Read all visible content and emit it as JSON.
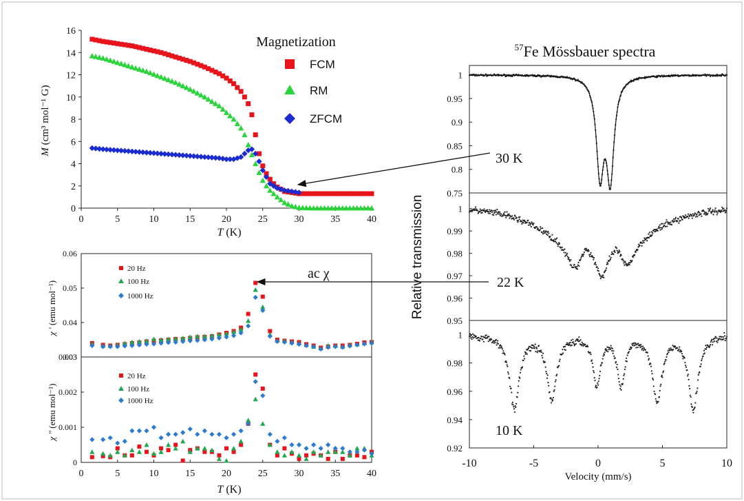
{
  "chart_data": [
    {
      "type": "scatter",
      "title": "Magnetization",
      "xlabel_prefix": "T",
      "xlabel_suffix": " (K)",
      "ylabel_prefix": "M",
      "ylabel_suffix": " (cm³ mol⁻¹ G)",
      "xlim": [
        0,
        40
      ],
      "ylim": [
        0,
        16
      ],
      "xticks": [
        0,
        5,
        10,
        15,
        20,
        25,
        30,
        35,
        40
      ],
      "yticks": [
        0,
        2,
        4,
        6,
        8,
        10,
        12,
        14,
        16
      ],
      "legend_placement": "top-right",
      "series": [
        {
          "name": "FCM",
          "color": "#e8141c",
          "marker": "square",
          "x": [
            1.5,
            3,
            5,
            7,
            9,
            11,
            13,
            15,
            17,
            19,
            20,
            21,
            22,
            22.5,
            23,
            23.5,
            24,
            24.5,
            25,
            25.5,
            26,
            26.5,
            27,
            27.5,
            28,
            29,
            30,
            32,
            34,
            36,
            38,
            40
          ],
          "y": [
            15.2,
            15.0,
            14.8,
            14.6,
            14.3,
            14.0,
            13.6,
            13.2,
            12.7,
            12.1,
            11.7,
            11.2,
            10.5,
            10.0,
            9.4,
            8.4,
            6.6,
            4.9,
            3.8,
            3.1,
            2.6,
            2.2,
            1.9,
            1.7,
            1.5,
            1.4,
            1.3,
            1.3,
            1.3,
            1.3,
            1.3,
            1.3
          ]
        },
        {
          "name": "RM",
          "color": "#2bd43b",
          "marker": "triangle",
          "x": [
            1.5,
            3,
            5,
            7,
            9,
            11,
            13,
            15,
            17,
            19,
            20,
            21,
            22,
            22.5,
            23,
            23.5,
            24,
            24.5,
            25,
            25.5,
            26,
            27,
            28,
            29,
            30,
            32,
            34,
            36,
            38,
            40
          ],
          "y": [
            13.7,
            13.5,
            13.1,
            12.7,
            12.3,
            11.8,
            11.3,
            10.7,
            10.0,
            9.2,
            8.6,
            8.0,
            7.2,
            6.6,
            5.7,
            4.8,
            4.0,
            3.2,
            2.5,
            2.0,
            1.6,
            1.0,
            0.5,
            0.2,
            0.05,
            0.0,
            0.0,
            0.0,
            0.0,
            0.0
          ]
        },
        {
          "name": "ZFCM",
          "color": "#1a2ccf",
          "marker": "diamond",
          "x": [
            1.5,
            3,
            5,
            7,
            9,
            11,
            13,
            15,
            17,
            19,
            20,
            21,
            22,
            22.5,
            23,
            23.5,
            24,
            24.5,
            25,
            25.5,
            26,
            27,
            28,
            29,
            30
          ],
          "y": [
            5.4,
            5.3,
            5.2,
            5.1,
            5.0,
            4.9,
            4.8,
            4.7,
            4.6,
            4.5,
            4.4,
            4.4,
            4.6,
            4.9,
            5.2,
            5.3,
            4.9,
            4.2,
            3.4,
            2.8,
            2.2,
            1.8,
            1.6,
            1.5,
            1.4
          ]
        }
      ]
    },
    {
      "type": "scatter",
      "annotation": "ac χ",
      "ylabel_prefix": "χ '",
      "ylabel_suffix": " (emu mol⁻¹)",
      "xlim": [
        0,
        40
      ],
      "ylim": [
        0.03,
        0.06
      ],
      "yticks": [
        0.03,
        0.04,
        0.05,
        0.06
      ],
      "ytick_labels": [
        "0.03",
        "0.04",
        "0.05",
        "0.06"
      ],
      "legend_placement": "top-left",
      "series": [
        {
          "name": "20 Hz",
          "color": "#e8141c",
          "marker": "square",
          "x": [
            1.5,
            3,
            4,
            5,
            6,
            7,
            8,
            9,
            10,
            11,
            12,
            13,
            14,
            15,
            16,
            17,
            18,
            19,
            20,
            21,
            22,
            23,
            24,
            25,
            26,
            27,
            28,
            29,
            30,
            31,
            32,
            33,
            34,
            35,
            36,
            37,
            38,
            39,
            40
          ],
          "y": [
            0.034,
            0.0335,
            0.0333,
            0.0335,
            0.0337,
            0.034,
            0.0342,
            0.0345,
            0.0347,
            0.0348,
            0.035,
            0.0352,
            0.0352,
            0.0355,
            0.0357,
            0.0358,
            0.036,
            0.0365,
            0.037,
            0.0375,
            0.0385,
            0.0425,
            0.0515,
            0.0475,
            0.0375,
            0.035,
            0.0347,
            0.0345,
            0.0343,
            0.0337,
            0.0333,
            0.0327,
            0.033,
            0.0333,
            0.0333,
            0.0335,
            0.0338,
            0.0342,
            0.0343
          ]
        },
        {
          "name": "100 Hz",
          "color": "#1fa84f",
          "marker": "triangle",
          "x": [
            1.5,
            3,
            4,
            5,
            6,
            7,
            8,
            9,
            10,
            11,
            12,
            13,
            14,
            15,
            16,
            17,
            18,
            19,
            20,
            21,
            22,
            23,
            24,
            25,
            26,
            27,
            28,
            29,
            30,
            31,
            32,
            33,
            34,
            35,
            36,
            37,
            38,
            39,
            40
          ],
          "y": [
            0.0338,
            0.0333,
            0.0333,
            0.0335,
            0.034,
            0.0343,
            0.0345,
            0.0347,
            0.0352,
            0.035,
            0.0352,
            0.0353,
            0.0355,
            0.0358,
            0.036,
            0.036,
            0.0362,
            0.0365,
            0.0368,
            0.0373,
            0.038,
            0.0405,
            0.0495,
            0.0445,
            0.0365,
            0.0348,
            0.0347,
            0.0343,
            0.034,
            0.0335,
            0.033,
            0.0325,
            0.0333,
            0.0333,
            0.033,
            0.0335,
            0.0337,
            0.034,
            0.0343
          ]
        },
        {
          "name": "1000 Hz",
          "color": "#2b7bd0",
          "marker": "diamond",
          "x": [
            1.5,
            3,
            4,
            5,
            6,
            7,
            8,
            9,
            10,
            11,
            12,
            13,
            14,
            15,
            16,
            17,
            18,
            19,
            20,
            21,
            22,
            23,
            24,
            25,
            26,
            27,
            28,
            29,
            30,
            31,
            32,
            33,
            34,
            35,
            36,
            37,
            38,
            39,
            40
          ],
          "y": [
            0.0333,
            0.033,
            0.033,
            0.033,
            0.0332,
            0.0333,
            0.0335,
            0.0337,
            0.0338,
            0.034,
            0.0342,
            0.0343,
            0.0345,
            0.0347,
            0.0348,
            0.035,
            0.0352,
            0.0355,
            0.0358,
            0.0362,
            0.037,
            0.039,
            0.0473,
            0.0435,
            0.036,
            0.0345,
            0.0343,
            0.034,
            0.0337,
            0.0333,
            0.033,
            0.0323,
            0.0328,
            0.033,
            0.0328,
            0.0332,
            0.0335,
            0.0338,
            0.034
          ]
        }
      ]
    },
    {
      "type": "scatter",
      "xlabel_prefix": "T",
      "xlabel_suffix": " (K)",
      "ylabel_prefix": "χ \"",
      "ylabel_suffix": " (emu mol⁻¹)",
      "xlim": [
        0,
        40
      ],
      "ylim": [
        0,
        0.003
      ],
      "xticks": [
        0,
        5,
        10,
        15,
        20,
        25,
        30,
        35,
        40
      ],
      "yticks": [
        0,
        0.001,
        0.002,
        0.003
      ],
      "ytick_labels": [
        "0",
        "0.001",
        "0.002",
        "0.003"
      ],
      "legend_placement": "top-left",
      "series": [
        {
          "name": "20 Hz",
          "color": "#e8141c",
          "marker": "square",
          "x": [
            1.5,
            3,
            4,
            5,
            6,
            7,
            8,
            9,
            10,
            11,
            12,
            13,
            14,
            15,
            16,
            17,
            18,
            19,
            20,
            21,
            22,
            23,
            24,
            25,
            26,
            27,
            28,
            29,
            30,
            31,
            32,
            33,
            34,
            35,
            36,
            37,
            38,
            39,
            40
          ],
          "y": [
            0.00015,
            0.00018,
            0.00015,
            0.0004,
            0.0002,
            0.0002,
            0.00045,
            0.0003,
            0.0002,
            0.0004,
            0.00035,
            0.0005,
            5e-05,
            0.00035,
            0.0004,
            0.0003,
            0.0003,
            0.0002,
            0.0004,
            0.0003,
            0.0005,
            0.0011,
            0.0025,
            0.0021,
            0.0005,
            0.0002,
            0.0004,
            0.00025,
            0.0001,
            0.0002,
            0.00025,
            0.0002,
            0.0001,
            0.0003,
            0.0001,
            0.0002,
            0.0002,
            0.00015,
            0.0003
          ]
        },
        {
          "name": "100 Hz",
          "color": "#1fa84f",
          "marker": "triangle",
          "x": [
            1.5,
            3,
            4,
            5,
            6,
            7,
            8,
            9,
            10,
            11,
            12,
            13,
            14,
            15,
            16,
            17,
            18,
            19,
            20,
            21,
            22,
            23,
            24,
            25,
            26,
            27,
            28,
            29,
            30,
            31,
            32,
            33,
            34,
            35,
            36,
            37,
            38,
            39,
            40
          ],
          "y": [
            0.0003,
            0.00025,
            0.0002,
            0.0003,
            0.0002,
            0.00035,
            0.0003,
            0.0005,
            0.00025,
            0.0003,
            0.0005,
            0.0004,
            0.0006,
            0.0003,
            0.0004,
            0.0004,
            0.00035,
            0.0001,
            5e-05,
            0.0004,
            0.0006,
            0.0012,
            0.0018,
            0.0011,
            0.0005,
            0.0003,
            0.0002,
            0.0003,
            0.0002,
            0.0001,
            0.0003,
            0.0002,
            0.0003,
            0.0003,
            0.0003,
            0.0002,
            0.0004,
            0.0004,
            0.0002
          ]
        },
        {
          "name": "1000 Hz",
          "color": "#2b7bd0",
          "marker": "diamond",
          "x": [
            1.5,
            3,
            4,
            5,
            6,
            7,
            8,
            9,
            10,
            11,
            12,
            13,
            14,
            15,
            16,
            17,
            18,
            19,
            20,
            21,
            22,
            23,
            24,
            25,
            26,
            27,
            28,
            29,
            30,
            31,
            32,
            33,
            34,
            35,
            36,
            37,
            38,
            39,
            40
          ],
          "y": [
            0.00065,
            0.00065,
            0.0007,
            0.00055,
            0.0006,
            0.0009,
            0.0009,
            0.0009,
            0.001,
            0.0007,
            0.0008,
            0.0008,
            0.00085,
            0.00095,
            0.0008,
            0.0009,
            0.0008,
            0.0008,
            0.0007,
            0.0008,
            0.0009,
            0.0011,
            0.0023,
            0.0019,
            0.0008,
            0.0006,
            0.0007,
            0.0005,
            0.0005,
            0.0004,
            0.0005,
            0.0004,
            0.0005,
            0.0004,
            0.0004,
            0.0003,
            0.0003,
            0.00035,
            0.00025
          ]
        }
      ]
    },
    {
      "type": "scatter",
      "title_super": "57",
      "title": "Fe Mössbauer spectra",
      "xlabel": "Velocity (mm/s)",
      "ylabel": "Relative transmission",
      "xlim": [
        -10,
        10
      ],
      "xticks": [
        -10,
        -5,
        0,
        5,
        10
      ],
      "xtick_labels": [
        "-10",
        "-5",
        "0",
        "5",
        "10"
      ],
      "panels": [
        {
          "label": "30 K",
          "ylim": [
            0.75,
            1.02
          ],
          "yticks": [
            0.75,
            0.8,
            0.85,
            0.9,
            0.95,
            1
          ],
          "ytick_labels": [
            "0.75",
            "0.8",
            "0.85",
            "0.9",
            "0.95",
            "1"
          ],
          "fit": "two-line"
        },
        {
          "label": "22 K",
          "ylim": [
            0.95,
            1.007
          ],
          "yticks": [
            0.95,
            0.96,
            0.97,
            0.98,
            0.99,
            1
          ],
          "ytick_labels": [
            "0.95",
            "0.96",
            "0.97",
            "0.98",
            "0.99",
            "1"
          ],
          "fit": "none"
        },
        {
          "label": "10 K",
          "ylim": [
            0.92,
            1.01
          ],
          "yticks": [
            0.92,
            0.94,
            0.96,
            0.98,
            1
          ],
          "ytick_labels": [
            "0.92",
            "0.94",
            "0.96",
            "0.98",
            "1"
          ],
          "fit": "none"
        }
      ]
    }
  ],
  "arrow_labels": {
    "mag_label": "30 K",
    "ac_label": "22 K"
  }
}
